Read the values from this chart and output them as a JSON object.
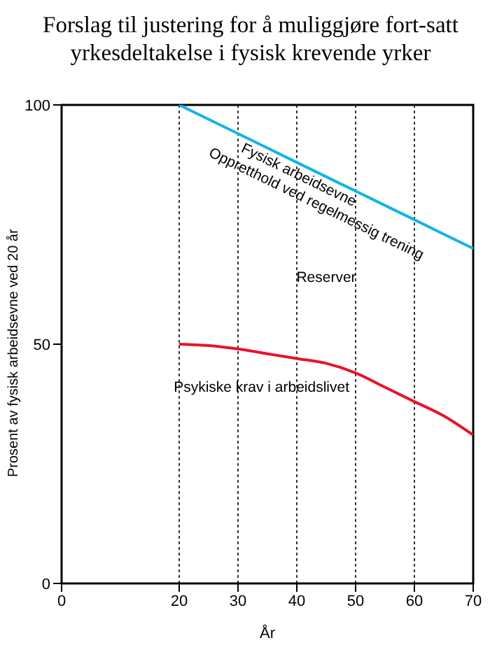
{
  "chart_data": {
    "type": "line",
    "title": "Forslag til justering for å muliggjøre fort-satt yrkesdeltakelse i fysisk krevende yrker",
    "xlabel": "År",
    "ylabel": "Prosent av fysisk arbeidsevne ved 20 år",
    "x": [
      20,
      25,
      30,
      35,
      40,
      45,
      50,
      55,
      60,
      65,
      70
    ],
    "series": [
      {
        "name": "Fysisk arbeidsevne",
        "color": "#14b3e8",
        "values": [
          100,
          97,
          94,
          91,
          88,
          85,
          82,
          79,
          76,
          73,
          70
        ]
      },
      {
        "name": "Psykiske krav i arbeidslivet",
        "color": "#e8132b",
        "values": [
          50,
          49.7,
          49,
          48,
          47,
          46,
          44,
          41,
          38,
          35,
          31
        ]
      }
    ],
    "annotations": [
      "Oppretthold ved regelmessig trening",
      "Reserver"
    ],
    "xlim": [
      0,
      70
    ],
    "xticks": [
      0,
      20,
      30,
      40,
      50,
      60,
      70
    ],
    "ylim": [
      0,
      100
    ],
    "yticks": [
      0,
      50,
      100
    ],
    "grid": "x",
    "legend": false,
    "marker": "none",
    "line_style": "solid"
  }
}
